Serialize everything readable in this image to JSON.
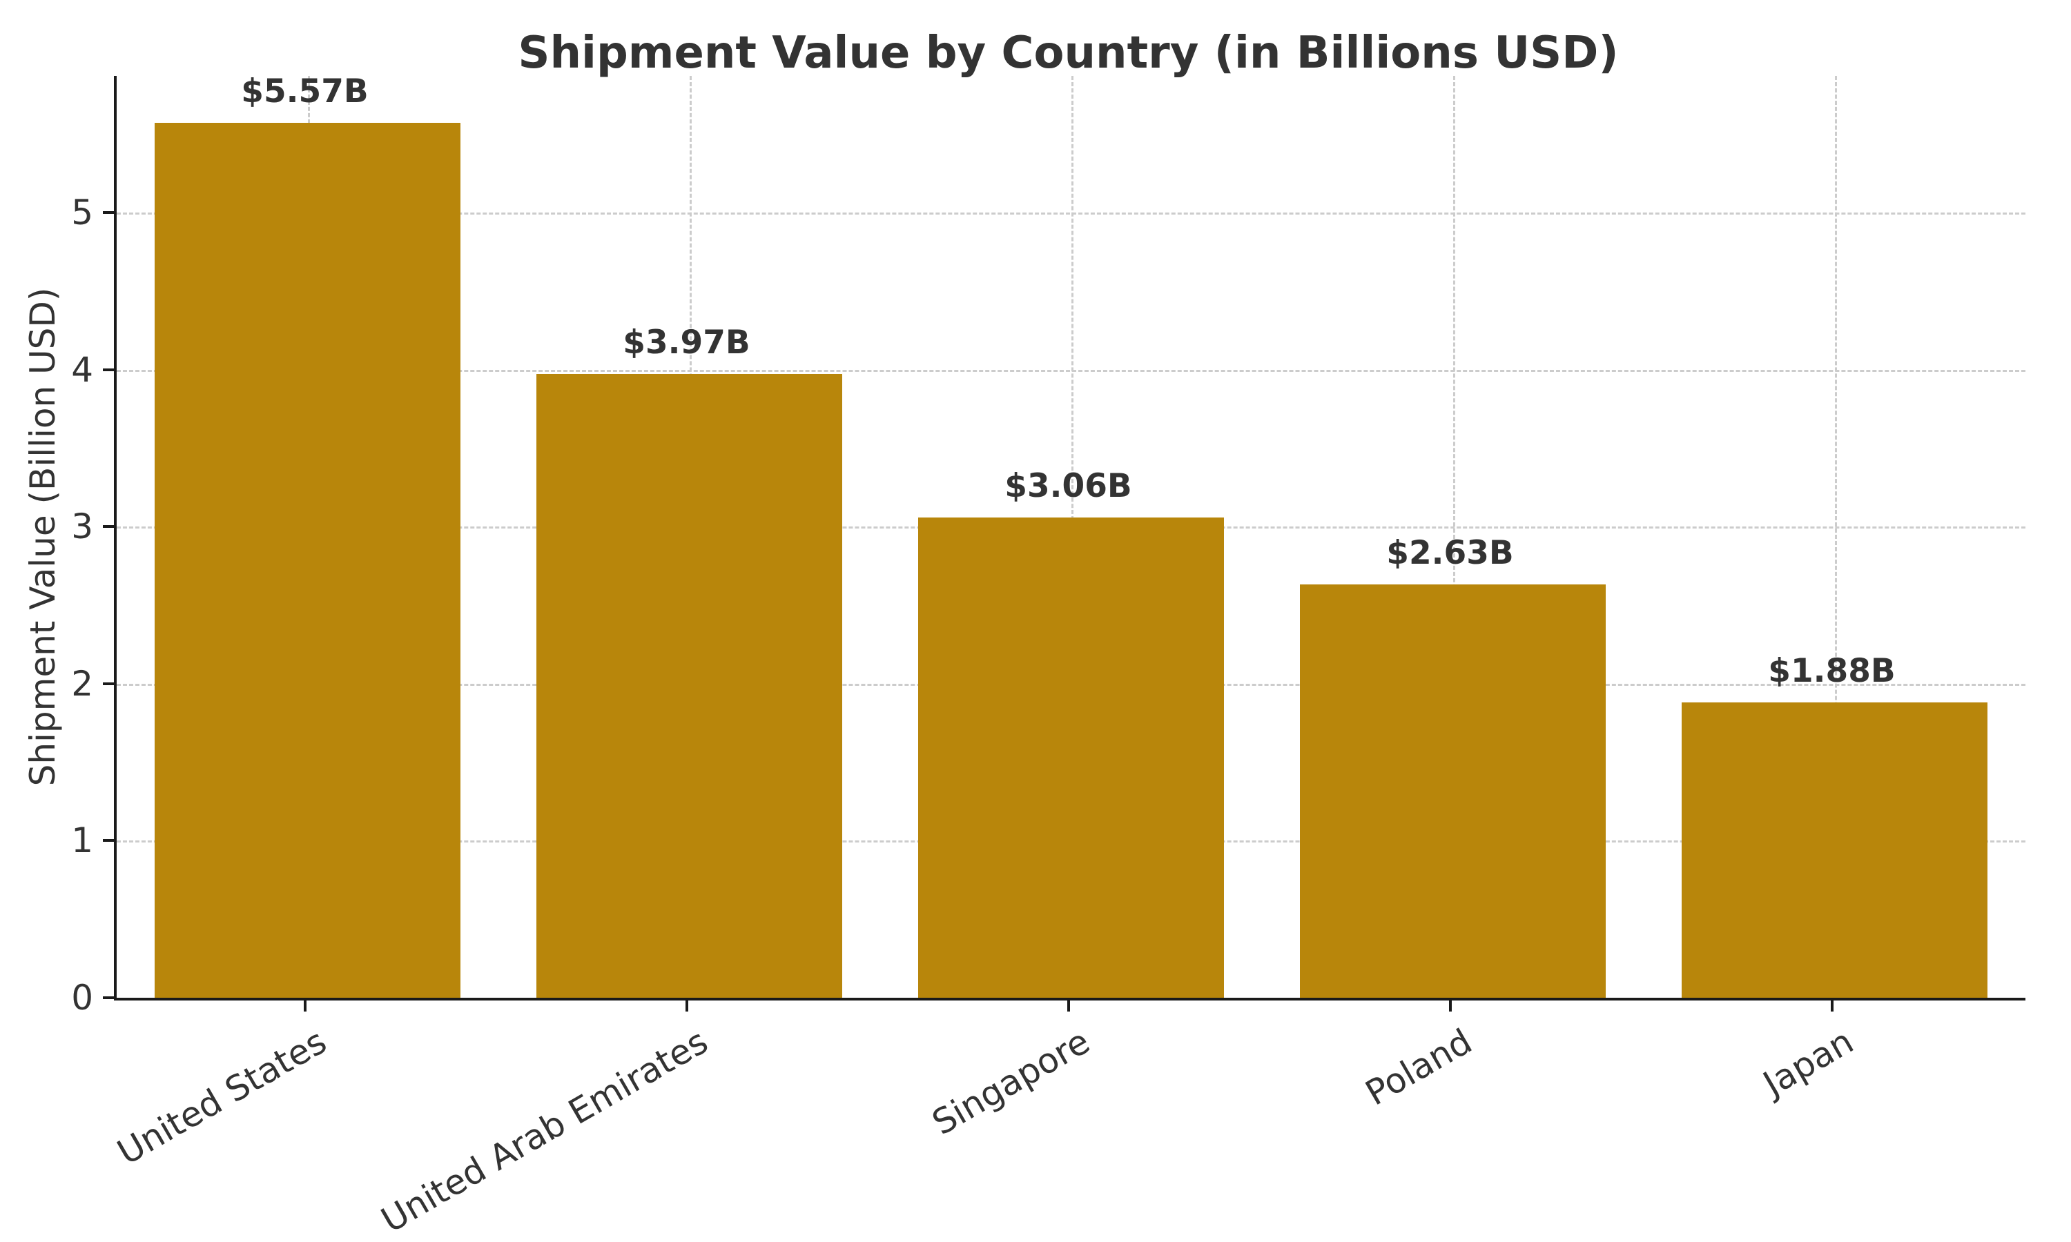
{
  "chart_data": {
    "type": "bar",
    "title": "Shipment Value by Country (in Billions USD)",
    "xlabel": "",
    "ylabel": "Shipment Value (Billion USD)",
    "categories": [
      "United States",
      "United Arab Emirates",
      "Singapore",
      "Poland",
      "Japan"
    ],
    "values": [
      5.57,
      3.97,
      3.06,
      2.63,
      1.88
    ],
    "bar_labels": [
      "$5.57B",
      "$3.97B",
      "$3.06B",
      "$2.63B",
      "$1.88B"
    ],
    "ylim": [
      0,
      5.87
    ],
    "yticks": [
      0,
      1,
      2,
      3,
      4,
      5
    ],
    "grid": "dashed horizontal and vertical",
    "legend": "none",
    "bar_color": "#B8860B",
    "text_color": "#333333",
    "grid_color": "#cccccc",
    "axis_color": "#1a1a1a"
  }
}
